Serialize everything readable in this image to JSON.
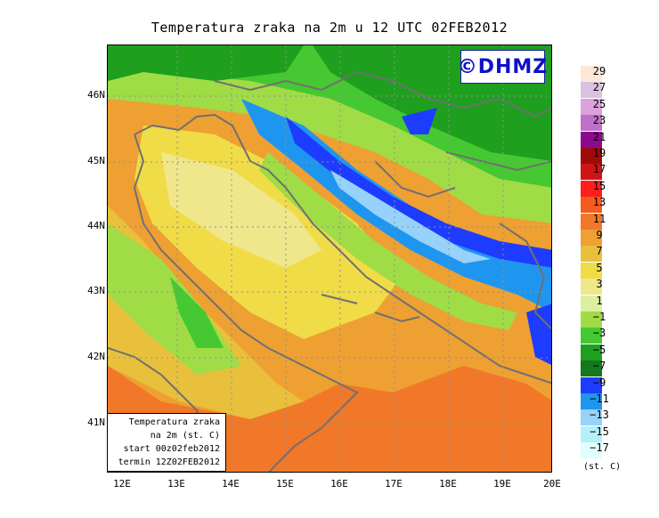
{
  "title": "Temperatura zraka na 2m u 12 UTC 02FEB2012",
  "logo": "©DHMZ",
  "lat_labels": [
    "46N",
    "45N",
    "44N",
    "43N",
    "42N",
    "41N"
  ],
  "lon_labels": [
    "12E",
    "13E",
    "14E",
    "15E",
    "16E",
    "17E",
    "18E",
    "19E",
    "20E"
  ],
  "info_box": {
    "line1": "Temperatura zraka",
    "line2": "na 2m (st. C)",
    "line3": "start 00z02feb2012",
    "line4": "termin 12Z02FEB2012"
  },
  "legend": {
    "labels": [
      "29",
      "27",
      "25",
      "23",
      "21",
      "19",
      "17",
      "15",
      "13",
      "11",
      "9",
      "7",
      "5",
      "3",
      "1",
      "−1",
      "−3",
      "−5",
      "−7",
      "−9",
      "−11",
      "−13",
      "−15",
      "−17"
    ],
    "colors": [
      "#fde8d8",
      "#d9c3e0",
      "#dca0dc",
      "#c070c8",
      "#8c0a8c",
      "#a00a0a",
      "#d01414",
      "#ff1e1e",
      "#f55a1e",
      "#f07828",
      "#eea032",
      "#e8c03c",
      "#f0dc46",
      "#f0e68c",
      "#dcf0a0",
      "#a0dc46",
      "#46c832",
      "#1ea01e",
      "#14781e",
      "#1e3cff",
      "#1e96f0",
      "#96d2fa",
      "#b4f0fa",
      "#e1ffff"
    ],
    "units": "(st. C)"
  }
}
